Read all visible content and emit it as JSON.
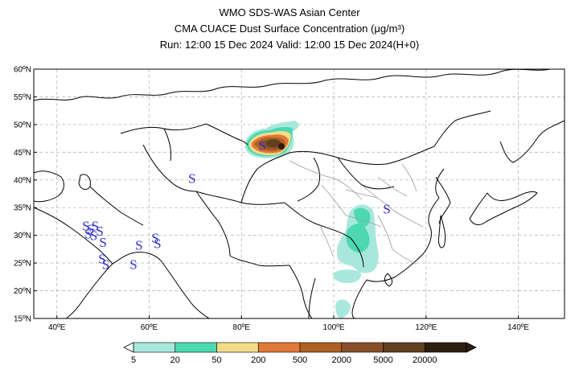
{
  "header": {
    "line1": "WMO SDS-WAS Asian Center",
    "line2": "CMA CUACE Dust Surface Concentration (μg/m³)",
    "line3": "Run: 12:00 15 Dec 2024    Valid: 12:00 15 Dec 2024(H+0)"
  },
  "axes": {
    "lat_labels": [
      "60ºN",
      "55ºN",
      "50ºN",
      "45ºN",
      "40ºN",
      "35ºN",
      "30ºN",
      "25ºN",
      "20ºN",
      "15ºN"
    ],
    "lon_labels": [
      "40ºE",
      "60ºE",
      "80ºE",
      "100ºE",
      "120ºE",
      "140ºE"
    ],
    "lat_values": [
      60,
      55,
      50,
      45,
      40,
      35,
      30,
      25,
      20,
      15
    ],
    "lon_values": [
      40,
      60,
      80,
      100,
      120,
      140
    ],
    "lat_range": [
      15,
      60
    ],
    "lon_range": [
      35,
      150
    ]
  },
  "symbols": {
    "dust_marker": "S",
    "marker_color": "#3030c8",
    "markers": [
      {
        "lon": 84.5,
        "lat": 46.3
      },
      {
        "lon": 69.3,
        "lat": 40.3
      },
      {
        "lon": 111.5,
        "lat": 34.8
      },
      {
        "lon": 46.3,
        "lat": 31.8
      },
      {
        "lon": 47.3,
        "lat": 31.2
      },
      {
        "lon": 48.3,
        "lat": 31.8
      },
      {
        "lon": 46.8,
        "lat": 30.3
      },
      {
        "lon": 48.0,
        "lat": 30.0
      },
      {
        "lon": 49.3,
        "lat": 30.8
      },
      {
        "lon": 50.0,
        "lat": 28.8
      },
      {
        "lon": 49.8,
        "lat": 25.8
      },
      {
        "lon": 50.6,
        "lat": 24.8
      },
      {
        "lon": 56.6,
        "lat": 24.8
      },
      {
        "lon": 57.8,
        "lat": 28.3
      },
      {
        "lon": 61.3,
        "lat": 29.6
      },
      {
        "lon": 61.8,
        "lat": 28.6
      }
    ]
  },
  "colorbar": {
    "labels": [
      "5",
      "20",
      "50",
      "200",
      "500",
      "2000",
      "5000",
      "20000"
    ],
    "colors": [
      "#a8e8dc",
      "#4cd8b0",
      "#f2dc88",
      "#e07838",
      "#b06020",
      "#885028",
      "#604020",
      "#2e1e10"
    ]
  }
}
